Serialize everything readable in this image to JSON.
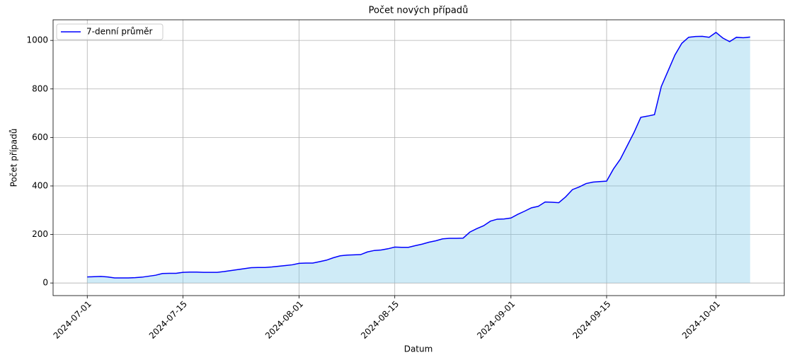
{
  "chart_data": {
    "type": "line",
    "title": "Počet nových případů",
    "xlabel": "Datum",
    "ylabel": "Počet případů",
    "x": [
      "2024-07-01",
      "2024-07-02",
      "2024-07-03",
      "2024-07-04",
      "2024-07-05",
      "2024-07-06",
      "2024-07-07",
      "2024-07-08",
      "2024-07-09",
      "2024-07-10",
      "2024-07-11",
      "2024-07-12",
      "2024-07-13",
      "2024-07-14",
      "2024-07-15",
      "2024-07-16",
      "2024-07-17",
      "2024-07-18",
      "2024-07-19",
      "2024-07-20",
      "2024-07-21",
      "2024-07-22",
      "2024-07-23",
      "2024-07-24",
      "2024-07-25",
      "2024-07-26",
      "2024-07-27",
      "2024-07-28",
      "2024-07-29",
      "2024-07-30",
      "2024-07-31",
      "2024-08-01",
      "2024-08-02",
      "2024-08-03",
      "2024-08-04",
      "2024-08-05",
      "2024-08-06",
      "2024-08-07",
      "2024-08-08",
      "2024-08-09",
      "2024-08-10",
      "2024-08-11",
      "2024-08-12",
      "2024-08-13",
      "2024-08-14",
      "2024-08-15",
      "2024-08-16",
      "2024-08-17",
      "2024-08-18",
      "2024-08-19",
      "2024-08-20",
      "2024-08-21",
      "2024-08-22",
      "2024-08-23",
      "2024-08-24",
      "2024-08-25",
      "2024-08-26",
      "2024-08-27",
      "2024-08-28",
      "2024-08-29",
      "2024-08-30",
      "2024-08-31",
      "2024-09-01",
      "2024-09-02",
      "2024-09-03",
      "2024-09-04",
      "2024-09-05",
      "2024-09-06",
      "2024-09-07",
      "2024-09-08",
      "2024-09-09",
      "2024-09-10",
      "2024-09-11",
      "2024-09-12",
      "2024-09-13",
      "2024-09-14",
      "2024-09-15",
      "2024-09-16",
      "2024-09-17",
      "2024-09-18",
      "2024-09-19",
      "2024-09-20",
      "2024-09-21",
      "2024-09-22",
      "2024-09-23",
      "2024-09-24",
      "2024-09-25",
      "2024-09-26",
      "2024-09-27",
      "2024-09-28",
      "2024-09-29",
      "2024-09-30",
      "2024-10-01",
      "2024-10-02",
      "2024-10-03",
      "2024-10-04",
      "2024-10-05",
      "2024-10-06"
    ],
    "series": [
      {
        "name": "7-denní průměr",
        "color": "#0000ff",
        "fill": "#87ceeb",
        "values": [
          25,
          26,
          27,
          25,
          21,
          21,
          21,
          22,
          24,
          28,
          32,
          39,
          40,
          40,
          44,
          45,
          45,
          44,
          44,
          44,
          47,
          51,
          55,
          59,
          63,
          64,
          64,
          66,
          69,
          72,
          75,
          81,
          82,
          82,
          88,
          94,
          104,
          112,
          115,
          116,
          117,
          128,
          134,
          136,
          141,
          148,
          147,
          147,
          154,
          160,
          168,
          174,
          182,
          184,
          184,
          185,
          210,
          224,
          236,
          255,
          263,
          264,
          268,
          283,
          296,
          310,
          316,
          334,
          333,
          331,
          355,
          385,
          396,
          410,
          416,
          418,
          420,
          470,
          510,
          565,
          620,
          683,
          688,
          694,
          810,
          875,
          940,
          988,
          1013,
          1016,
          1017,
          1013,
          1033,
          1010,
          995,
          1013,
          1011,
          1014
        ]
      }
    ],
    "xlim": [
      "2024-06-26",
      "2024-10-11"
    ],
    "xticks": [
      "2024-07-01",
      "2024-07-15",
      "2024-08-01",
      "2024-08-15",
      "2024-09-01",
      "2024-09-15",
      "2024-10-01"
    ],
    "ylim": [
      -52,
      1085
    ],
    "yticks": [
      0,
      200,
      400,
      600,
      800,
      1000
    ],
    "grid": true,
    "legend": "upper left"
  }
}
